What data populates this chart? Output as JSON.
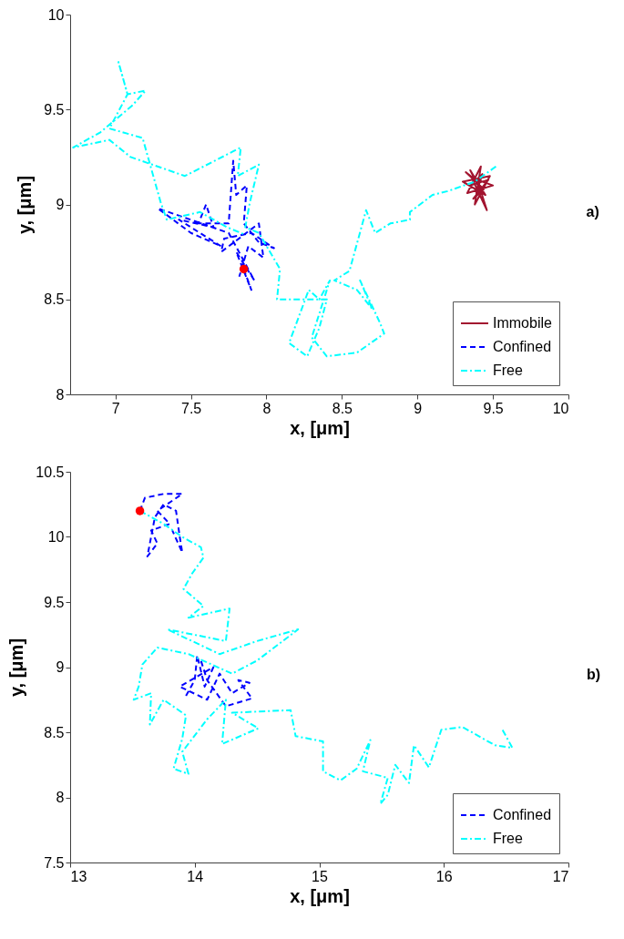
{
  "chart_data": [
    {
      "type": "line",
      "xlabel": "x, [μm]",
      "ylabel": "y, [μm]",
      "annotations": [
        "a)"
      ],
      "xlim": [
        6.7,
        10
      ],
      "ylim": [
        8,
        10
      ],
      "xticks": [
        7,
        7.5,
        8,
        8.5,
        9,
        9.5,
        10
      ],
      "yticks": [
        8,
        8.5,
        9,
        9.5,
        10
      ],
      "grid": false,
      "legend": "bottom right",
      "series": [
        {
          "name": "Immobile",
          "type": "line",
          "color": "#a2142f",
          "line_style": "solid",
          "x": [
            9.4,
            9.35,
            9.45,
            9.3,
            9.48,
            9.38,
            9.42,
            9.33,
            9.5,
            9.36,
            9.46,
            9.4,
            9.32,
            9.44,
            9.37,
            9.47,
            9.35,
            9.43,
            9.39,
            9.41
          ],
          "values": [
            9.1,
            9.18,
            9.05,
            9.12,
            9.15,
            9,
            9.2,
            9.06,
            9.1,
            9.14,
            8.97,
            9.12,
            9.17,
            9.08,
            9.03,
            9.13,
            9.1,
            9.16,
            9.06,
            9.11
          ]
        },
        {
          "name": "Confined",
          "type": "line",
          "color": "#0000ff",
          "line_style": "dashed",
          "x": [
            7.85,
            7.9,
            7.8,
            7.92,
            7.75,
            7.28,
            7.5,
            7.7,
            7.42,
            7.65,
            7.6,
            7.55,
            7.75,
            7.78,
            7.8,
            7.87,
            7.85,
            7.95,
            8.05,
            7.9,
            7.72,
            7.7,
            7.95,
            7.98,
            7.88,
            7.82
          ],
          "values": [
            8.66,
            8.55,
            8.75,
            8.6,
            8.85,
            8.98,
            8.85,
            8.78,
            8.92,
            8.88,
            9,
            8.9,
            8.9,
            9.23,
            9.05,
            9.1,
            8.9,
            8.8,
            8.77,
            8.85,
            8.82,
            8.75,
            8.9,
            8.72,
            8.78,
            8.62
          ]
        },
        {
          "name": "Free",
          "type": "line",
          "color": "#00ffff",
          "line_style": "dashdot",
          "x": [
            9.52,
            9.38,
            9.2,
            9.1,
            8.95,
            8.95,
            8.82,
            8.72,
            8.66,
            8.55,
            8.45,
            8.6,
            8.7,
            8.62,
            8.75,
            8.78,
            8.6,
            8.4,
            8.3,
            8.42,
            8.35,
            8.28,
            8.15,
            8.27,
            8.35,
            8.4,
            8.07,
            8.09,
            7.95,
            7.86,
            7.89,
            7.95,
            7.81,
            7.83,
            7.46,
            7.1,
            6.96,
            6.72,
            6.9,
            7.11,
            7.2,
            7.08,
            7.02,
            7.08,
            6.96,
            7.18,
            7.3,
            7.34,
            7.56,
            7.74,
            7.86
          ],
          "values": [
            9.2,
            9.12,
            9.07,
            9.05,
            8.96,
            8.92,
            8.9,
            8.85,
            8.97,
            8.65,
            8.6,
            8.55,
            8.45,
            8.6,
            8.38,
            8.32,
            8.22,
            8.2,
            8.3,
            8.6,
            8.5,
            8.55,
            8.27,
            8.2,
            8.35,
            8.5,
            8.5,
            8.66,
            8.85,
            8.88,
            9.01,
            9.21,
            9.15,
            9.3,
            9.15,
            9.25,
            9.34,
            9.3,
            9.38,
            9.52,
            9.6,
            9.58,
            9.75,
            9.58,
            9.4,
            9.35,
            9.01,
            8.92,
            8.96,
            8.88,
            8.84
          ]
        },
        {
          "type": "scatter",
          "color": "#ff0000",
          "marker": "circle",
          "x": [
            7.85
          ],
          "values": [
            8.66
          ]
        }
      ]
    },
    {
      "type": "line",
      "xlabel": "x, [μm]",
      "ylabel": "y, [μm]",
      "annotations": [
        "b)"
      ],
      "xlim": [
        13,
        17
      ],
      "ylim": [
        7.5,
        10.5
      ],
      "xticks": [
        13,
        14,
        15,
        16,
        17
      ],
      "yticks": [
        7.5,
        8,
        8.5,
        9,
        9.5,
        10,
        10.5
      ],
      "grid": false,
      "legend": "bottom right",
      "series": [
        {
          "name": "Confined",
          "type": "line",
          "color": "#0000ff",
          "line_style": "dashed",
          "x": [
            13.56,
            13.6,
            13.75,
            13.9,
            13.7,
            13.8,
            13.65,
            13.7,
            13.62,
            13.68,
            13.75,
            13.85,
            13.88,
            13.9,
            13.82,
            null,
            13.93,
            14,
            14.02,
            14.08,
            14.15,
            13.88,
            14.1,
            14.2,
            14.3,
            14.44,
            14.35,
            14.46,
            14.25,
            14.1,
            14.05
          ],
          "values": [
            10.2,
            10.3,
            10.33,
            10.33,
            10.2,
            10.1,
            10.05,
            9.95,
            9.85,
            10.15,
            10.25,
            10.2,
            10,
            9.88,
            10.05,
            null,
            8.78,
            8.9,
            9.09,
            8.85,
            9,
            8.85,
            8.75,
            8.95,
            8.8,
            8.88,
            8.9,
            8.76,
            8.7,
            8.9,
            9.05
          ]
        },
        {
          "name": "Free",
          "type": "line",
          "color": "#00ffff",
          "line_style": "dashdot",
          "x": [
            13.56,
            13.75,
            13.9,
            14.05,
            14.07,
            13.98,
            13.91,
            14.07,
            13.95,
            14.28,
            14.25,
            13.78,
            14.2,
            14.5,
            14.83,
            14.5,
            14.3,
            13.95,
            13.7,
            13.58,
            13.55,
            13.51,
            13.65,
            13.64,
            13.75,
            13.93,
            13.9,
            13.83,
            13.95,
            13.9,
            14.1,
            14.25,
            14.22,
            14.51,
            14.3,
            14.77,
            14.81,
            15.03,
            15.03,
            15.17,
            15.3,
            15.41,
            15.35,
            15.55,
            15.49,
            15.55,
            15.61,
            15.72,
            15.76,
            15.88,
            15.98,
            16.15,
            16.41,
            16.55,
            16.47
          ],
          "values": [
            10.2,
            10.1,
            10,
            9.92,
            9.84,
            9.72,
            9.6,
            9.47,
            9.38,
            9.45,
            9.2,
            9.29,
            9.1,
            9.2,
            9.29,
            9.05,
            8.95,
            9.1,
            9.15,
            9.02,
            8.85,
            8.75,
            8.8,
            8.56,
            8.75,
            8.63,
            8.45,
            8.22,
            8.18,
            8.35,
            8.6,
            8.75,
            8.41,
            8.53,
            8.65,
            8.67,
            8.47,
            8.43,
            8.2,
            8.13,
            8.22,
            8.44,
            8.2,
            8.15,
            7.95,
            8.02,
            8.25,
            8.11,
            8.4,
            8.23,
            8.52,
            8.54,
            8.4,
            8.38,
            8.52
          ]
        },
        {
          "type": "scatter",
          "color": "#ff0000",
          "marker": "circle",
          "x": [
            13.56
          ],
          "values": [
            10.2
          ]
        }
      ]
    }
  ]
}
